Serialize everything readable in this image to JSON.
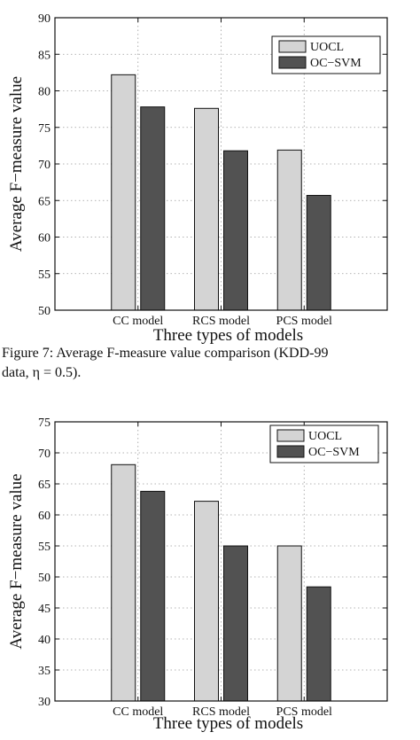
{
  "caption": {
    "line1": "Figure 7:  Average F-measure value comparison (KDD-99",
    "line2": "data, η = 0.5)."
  },
  "colors": {
    "uocl": "#d4d4d4",
    "ocsvm": "#525252",
    "edge": "#111111"
  },
  "chart_data": [
    {
      "type": "bar",
      "categories": [
        "CC model",
        "RCS model",
        "PCS model"
      ],
      "series": [
        {
          "name": "UOCL",
          "values": [
            82.2,
            77.6,
            71.9
          ]
        },
        {
          "name": "OC−SVM",
          "values": [
            77.8,
            71.8,
            65.7
          ]
        }
      ],
      "xlabel": "Three types of models",
      "ylabel": "Average F−measure value",
      "ylim": [
        50,
        90
      ],
      "yticks": [
        50,
        55,
        60,
        65,
        70,
        75,
        80,
        85,
        90
      ],
      "grid": true,
      "legend": "top-right"
    },
    {
      "type": "bar",
      "categories": [
        "CC model",
        "RCS model",
        "PCS model"
      ],
      "series": [
        {
          "name": "UOCL",
          "values": [
            68.1,
            62.2,
            55.0
          ]
        },
        {
          "name": "OC−SVM",
          "values": [
            63.8,
            55.0,
            48.4
          ]
        }
      ],
      "xlabel": "Three types of models",
      "ylabel": "Average F−measure value",
      "ylim": [
        30,
        75
      ],
      "yticks": [
        30,
        35,
        40,
        45,
        50,
        55,
        60,
        65,
        70,
        75
      ],
      "grid": true,
      "legend": "top-right"
    }
  ]
}
